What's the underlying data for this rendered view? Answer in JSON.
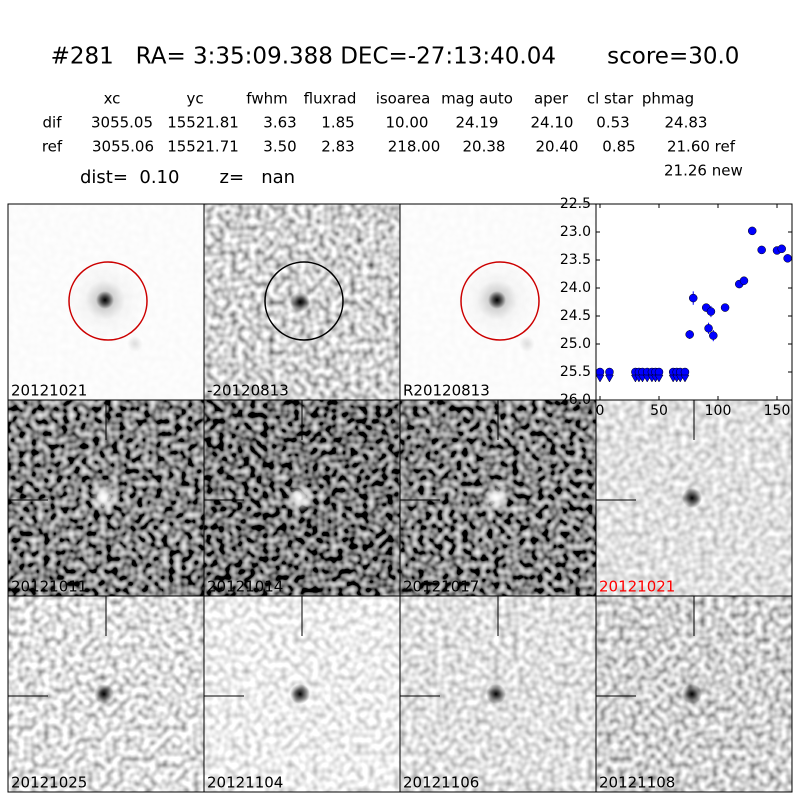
{
  "header": {
    "title": "#281   RA= 3:35:09.388 DEC=-27:13:40.04       score=30.0",
    "dist_line": "dist=  0.10       z=   nan",
    "extra": "21.26 new"
  },
  "table": {
    "columns": [
      "xc",
      "yc",
      "fwhm",
      "fluxrad",
      "isoarea",
      "mag auto",
      "aper",
      "cl star",
      "phmag"
    ],
    "rows": [
      [
        "dif",
        "3055.05",
        "15521.81",
        "3.63",
        "1.85",
        "10.00",
        "24.19",
        "24.10",
        "0.53",
        "24.83"
      ],
      [
        "ref",
        "3055.06",
        "15521.71",
        "3.50",
        "2.83",
        "218.00",
        "20.38",
        "20.40",
        "0.85",
        "21.60 ref"
      ]
    ]
  },
  "stamps": [
    {
      "label": "20121021"
    },
    {
      "label": "-20120813"
    },
    {
      "label": "R20120813"
    },
    {
      "label": "20121011"
    },
    {
      "label": "20121014"
    },
    {
      "label": "20121017"
    },
    {
      "label": "20121021",
      "label_color": "#ff0000"
    },
    {
      "label": "20121025"
    },
    {
      "label": "20121104"
    },
    {
      "label": "20121106"
    },
    {
      "label": "20121108"
    }
  ],
  "chart_data": {
    "type": "scatter",
    "xlim": [
      -3.4,
      162.7
    ],
    "ylim": [
      26.0,
      22.5
    ],
    "xticks": [
      0,
      50,
      100,
      150
    ],
    "yticks": [
      22.5,
      {
        "value": 23.0,
        "label": "23.0"
      },
      23.5,
      {
        "value": 24.0,
        "label": "24.0"
      },
      24.5,
      {
        "value": 25.0,
        "label": "25.0"
      },
      25.5,
      {
        "value": 26.0,
        "label": "26.0"
      }
    ],
    "series": [
      {
        "color": "#0000ff",
        "marker": "limit",
        "x": [
          0,
          8,
          30,
          33,
          36,
          40,
          44,
          47,
          50,
          62,
          65,
          68,
          72
        ],
        "values": [
          25.5,
          25.5,
          25.5,
          25.5,
          25.5,
          25.5,
          25.5,
          25.5,
          25.5,
          25.5,
          25.5,
          25.5,
          25.5
        ]
      },
      {
        "color": "#0000ff",
        "marker": "circle",
        "x": [
          76,
          79,
          90,
          92,
          94,
          96,
          106,
          118,
          122,
          129,
          137,
          150,
          154,
          159
        ],
        "values": [
          24.83,
          24.18,
          24.35,
          24.72,
          24.42,
          24.85,
          24.35,
          23.93,
          23.87,
          22.98,
          23.32,
          23.33,
          23.3,
          23.47
        ],
        "errors": [
          0.08,
          0.12,
          0.05,
          0.1,
          0.1,
          0.1,
          0.05,
          0.05,
          0.05,
          0.02,
          0.02,
          0.02,
          0.02,
          0.03
        ]
      }
    ]
  }
}
